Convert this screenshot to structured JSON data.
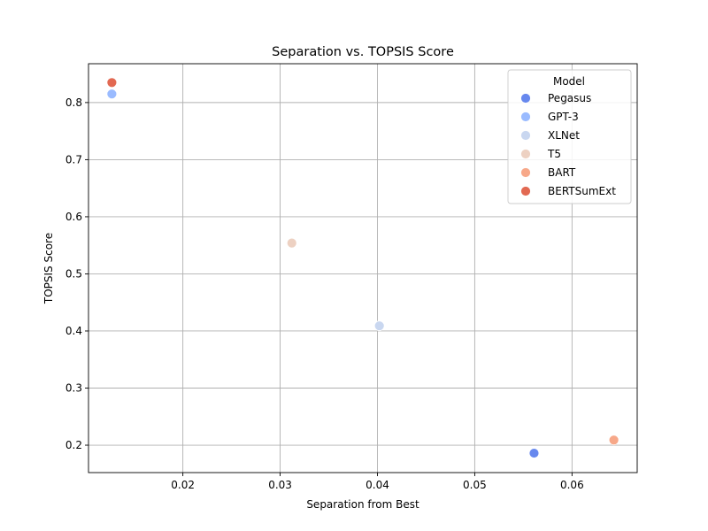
{
  "chart_data": {
    "type": "scatter",
    "title": "Separation vs. TOPSIS Score",
    "xlabel": "Separation from Best",
    "ylabel": "TOPSIS Score",
    "xlim": [
      0.0103,
      0.0667
    ],
    "ylim": [
      0.152,
      0.868
    ],
    "xticks": [
      0.02,
      0.03,
      0.04,
      0.05,
      0.06
    ],
    "xtick_labels": [
      "0.02",
      "0.03",
      "0.04",
      "0.05",
      "0.06"
    ],
    "yticks": [
      0.2,
      0.3,
      0.4,
      0.5,
      0.6,
      0.7,
      0.8
    ],
    "ytick_labels": [
      "0.2",
      "0.3",
      "0.4",
      "0.5",
      "0.6",
      "0.7",
      "0.8"
    ],
    "grid": true,
    "legend": {
      "title": "Model",
      "placement": "top-right"
    },
    "series": [
      {
        "name": "Pegasus",
        "color": "#6788ee",
        "x": [
          0.0561
        ],
        "y": [
          0.186
        ]
      },
      {
        "name": "GPT-3",
        "color": "#9abbff",
        "x": [
          0.0127
        ],
        "y": [
          0.815
        ]
      },
      {
        "name": "XLNet",
        "color": "#c9d7f0",
        "x": [
          0.0402
        ],
        "y": [
          0.409
        ]
      },
      {
        "name": "T5",
        "color": "#edd1c2",
        "x": [
          0.0312
        ],
        "y": [
          0.554
        ]
      },
      {
        "name": "BART",
        "color": "#f7a889",
        "x": [
          0.0643
        ],
        "y": [
          0.209
        ]
      },
      {
        "name": "BERTSumExt",
        "color": "#e26952",
        "x": [
          0.0127
        ],
        "y": [
          0.835
        ]
      }
    ]
  }
}
